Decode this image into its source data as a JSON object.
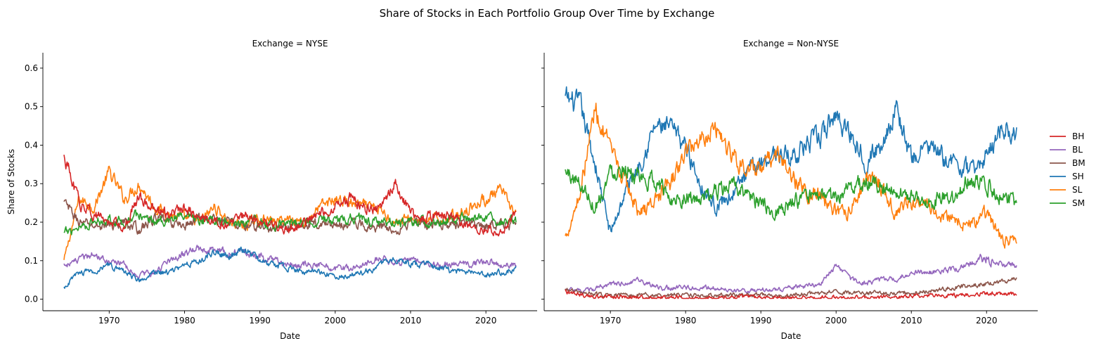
{
  "figure": {
    "suptitle": "Share of Stocks in Each Portfolio Group Over Time by Exchange"
  },
  "chart_data": {
    "type": "line",
    "title": "Share of Stocks in Each Portfolio Group Over Time by Exchange",
    "xlabel": "Date",
    "ylabel": "Share of Stocks",
    "xlim": [
      1961.2,
      2026.8
    ],
    "ylim": [
      -0.03,
      0.64
    ],
    "x_ticks": [
      1970,
      1980,
      1990,
      2000,
      2010,
      2020
    ],
    "y_ticks": [
      0.0,
      0.1,
      0.2,
      0.3,
      0.4,
      0.5,
      0.6
    ],
    "grid": false,
    "legend_position": "right-center",
    "legend": [
      {
        "name": "BH",
        "color": "#d62728"
      },
      {
        "name": "BL",
        "color": "#9467bd"
      },
      {
        "name": "BM",
        "color": "#8c564b"
      },
      {
        "name": "SH",
        "color": "#1f77b4"
      },
      {
        "name": "SL",
        "color": "#ff7f0e"
      },
      {
        "name": "SM",
        "color": "#2ca02c"
      }
    ],
    "facets": [
      {
        "title": "Exchange = NYSE",
        "series": [
          {
            "name": "SL",
            "color": "#ff7f0e",
            "x": [
              1964,
              1966,
              1968,
              1970,
              1972,
              1974,
              1976,
              1978,
              1980,
              1982,
              1984,
              1986,
              1988,
              1990,
              1992,
              1994,
              1996,
              1998,
              2000,
              2002,
              2004,
              2006,
              2008,
              2010,
              2012,
              2014,
              2016,
              2018,
              2020,
              2022,
              2024
            ],
            "y": [
              0.1,
              0.26,
              0.24,
              0.33,
              0.26,
              0.3,
              0.24,
              0.22,
              0.21,
              0.2,
              0.24,
              0.2,
              0.19,
              0.21,
              0.2,
              0.21,
              0.2,
              0.24,
              0.26,
              0.25,
              0.24,
              0.23,
              0.2,
              0.21,
              0.2,
              0.21,
              0.22,
              0.24,
              0.26,
              0.28,
              0.22
            ]
          },
          {
            "name": "BM",
            "color": "#8c564b",
            "x": [
              1964,
              1966,
              1968,
              1970,
              1972,
              1974,
              1976,
              1978,
              1980,
              1982,
              1984,
              1986,
              1988,
              1990,
              1992,
              1994,
              1996,
              1998,
              2000,
              2002,
              2004,
              2006,
              2008,
              2010,
              2012,
              2014,
              2016,
              2018,
              2020,
              2022,
              2024
            ],
            "y": [
              0.25,
              0.2,
              0.19,
              0.19,
              0.2,
              0.18,
              0.21,
              0.2,
              0.19,
              0.21,
              0.21,
              0.2,
              0.19,
              0.19,
              0.18,
              0.19,
              0.19,
              0.2,
              0.19,
              0.2,
              0.19,
              0.19,
              0.18,
              0.2,
              0.19,
              0.2,
              0.19,
              0.2,
              0.19,
              0.2,
              0.19
            ]
          },
          {
            "name": "SM",
            "color": "#2ca02c",
            "x": [
              1964,
              1966,
              1968,
              1970,
              1972,
              1974,
              1976,
              1978,
              1980,
              1982,
              1984,
              1986,
              1988,
              1990,
              1992,
              1994,
              1996,
              1998,
              2000,
              2002,
              2004,
              2006,
              2008,
              2010,
              2012,
              2014,
              2016,
              2018,
              2020,
              2022,
              2024
            ],
            "y": [
              0.17,
              0.19,
              0.2,
              0.21,
              0.2,
              0.22,
              0.2,
              0.21,
              0.21,
              0.2,
              0.21,
              0.2,
              0.2,
              0.2,
              0.19,
              0.2,
              0.2,
              0.21,
              0.2,
              0.21,
              0.21,
              0.2,
              0.2,
              0.2,
              0.2,
              0.2,
              0.21,
              0.21,
              0.21,
              0.2,
              0.2
            ]
          },
          {
            "name": "BH",
            "color": "#d62728",
            "x": [
              1964,
              1966,
              1968,
              1970,
              1972,
              1974,
              1976,
              1978,
              1980,
              1982,
              1984,
              1986,
              1988,
              1990,
              1992,
              1994,
              1996,
              1998,
              2000,
              2002,
              2004,
              2006,
              2008,
              2010,
              2012,
              2014,
              2016,
              2018,
              2020,
              2022,
              2024
            ],
            "y": [
              0.37,
              0.25,
              0.22,
              0.2,
              0.19,
              0.27,
              0.23,
              0.22,
              0.24,
              0.21,
              0.2,
              0.19,
              0.22,
              0.2,
              0.19,
              0.18,
              0.2,
              0.22,
              0.24,
              0.26,
              0.24,
              0.23,
              0.3,
              0.22,
              0.21,
              0.22,
              0.21,
              0.19,
              0.18,
              0.17,
              0.23
            ]
          },
          {
            "name": "BL",
            "color": "#9467bd",
            "x": [
              1964,
              1966,
              1968,
              1970,
              1972,
              1974,
              1976,
              1978,
              1980,
              1982,
              1984,
              1986,
              1988,
              1990,
              1992,
              1994,
              1996,
              1998,
              2000,
              2002,
              2004,
              2006,
              2008,
              2010,
              2012,
              2014,
              2016,
              2018,
              2020,
              2022,
              2024
            ],
            "y": [
              0.09,
              0.1,
              0.12,
              0.1,
              0.09,
              0.06,
              0.07,
              0.1,
              0.12,
              0.13,
              0.13,
              0.12,
              0.12,
              0.11,
              0.1,
              0.09,
              0.09,
              0.09,
              0.08,
              0.08,
              0.09,
              0.11,
              0.09,
              0.1,
              0.09,
              0.09,
              0.09,
              0.09,
              0.1,
              0.09,
              0.09
            ]
          },
          {
            "name": "SH",
            "color": "#1f77b4",
            "x": [
              1964,
              1966,
              1968,
              1970,
              1972,
              1974,
              1976,
              1978,
              1980,
              1982,
              1984,
              1986,
              1988,
              1990,
              1992,
              1994,
              1996,
              1998,
              2000,
              2002,
              2004,
              2006,
              2008,
              2010,
              2012,
              2014,
              2016,
              2018,
              2020,
              2022,
              2024
            ],
            "y": [
              0.03,
              0.07,
              0.07,
              0.09,
              0.07,
              0.05,
              0.07,
              0.07,
              0.09,
              0.1,
              0.12,
              0.11,
              0.13,
              0.1,
              0.09,
              0.08,
              0.07,
              0.07,
              0.06,
              0.06,
              0.07,
              0.09,
              0.1,
              0.09,
              0.09,
              0.08,
              0.07,
              0.07,
              0.06,
              0.07,
              0.08
            ]
          }
        ]
      },
      {
        "title": "Exchange = Non-NYSE",
        "series": [
          {
            "name": "SH",
            "color": "#1f77b4",
            "x": [
              1964,
              1966,
              1968,
              1970,
              1972,
              1974,
              1976,
              1978,
              1980,
              1982,
              1984,
              1986,
              1988,
              1990,
              1992,
              1994,
              1996,
              1998,
              2000,
              2002,
              2004,
              2006,
              2008,
              2010,
              2012,
              2014,
              2016,
              2018,
              2020,
              2022,
              2024
            ],
            "y": [
              0.52,
              0.5,
              0.35,
              0.17,
              0.28,
              0.36,
              0.45,
              0.44,
              0.4,
              0.3,
              0.24,
              0.27,
              0.32,
              0.36,
              0.38,
              0.37,
              0.4,
              0.42,
              0.48,
              0.43,
              0.36,
              0.4,
              0.5,
              0.36,
              0.4,
              0.37,
              0.35,
              0.33,
              0.37,
              0.45,
              0.43
            ]
          },
          {
            "name": "SL",
            "color": "#ff7f0e",
            "x": [
              1964,
              1966,
              1968,
              1970,
              1972,
              1974,
              1976,
              1978,
              1980,
              1982,
              1984,
              1986,
              1988,
              1990,
              1992,
              1994,
              1996,
              1998,
              2000,
              2002,
              2004,
              2006,
              2008,
              2010,
              2012,
              2014,
              2016,
              2018,
              2020,
              2022,
              2024
            ],
            "y": [
              0.16,
              0.28,
              0.5,
              0.38,
              0.3,
              0.22,
              0.26,
              0.3,
              0.38,
              0.42,
              0.45,
              0.38,
              0.34,
              0.33,
              0.38,
              0.32,
              0.28,
              0.27,
              0.22,
              0.23,
              0.32,
              0.3,
              0.22,
              0.25,
              0.24,
              0.22,
              0.21,
              0.19,
              0.23,
              0.15,
              0.16
            ]
          },
          {
            "name": "SM",
            "color": "#2ca02c",
            "x": [
              1964,
              1966,
              1968,
              1970,
              1972,
              1974,
              1976,
              1978,
              1980,
              1982,
              1984,
              1986,
              1988,
              1990,
              1992,
              1994,
              1996,
              1998,
              2000,
              2002,
              2004,
              2006,
              2008,
              2010,
              2012,
              2014,
              2016,
              2018,
              2020,
              2022,
              2024
            ],
            "y": [
              0.33,
              0.3,
              0.24,
              0.33,
              0.35,
              0.3,
              0.31,
              0.26,
              0.27,
              0.25,
              0.28,
              0.29,
              0.28,
              0.24,
              0.23,
              0.25,
              0.26,
              0.27,
              0.26,
              0.29,
              0.31,
              0.29,
              0.28,
              0.27,
              0.25,
              0.26,
              0.27,
              0.32,
              0.3,
              0.27,
              0.25
            ]
          },
          {
            "name": "BL",
            "color": "#9467bd",
            "x": [
              1964,
              1966,
              1968,
              1970,
              1972,
              1974,
              1976,
              1978,
              1980,
              1982,
              1984,
              1986,
              1988,
              1990,
              1992,
              1994,
              1996,
              1998,
              2000,
              2002,
              2004,
              2006,
              2008,
              2010,
              2012,
              2014,
              2016,
              2018,
              2020,
              2022,
              2024
            ],
            "y": [
              0.025,
              0.02,
              0.025,
              0.04,
              0.04,
              0.05,
              0.03,
              0.03,
              0.03,
              0.03,
              0.03,
              0.025,
              0.02,
              0.025,
              0.025,
              0.03,
              0.035,
              0.04,
              0.09,
              0.05,
              0.04,
              0.05,
              0.05,
              0.07,
              0.07,
              0.07,
              0.08,
              0.09,
              0.11,
              0.09,
              0.09
            ]
          },
          {
            "name": "BM",
            "color": "#8c564b",
            "x": [
              1964,
              1966,
              1968,
              1970,
              1972,
              1974,
              1976,
              1978,
              1980,
              1982,
              1984,
              1986,
              1988,
              1990,
              1992,
              1994,
              1996,
              1998,
              2000,
              2002,
              2004,
              2006,
              2008,
              2010,
              2012,
              2014,
              2016,
              2018,
              2020,
              2022,
              2024
            ],
            "y": [
              0.025,
              0.015,
              0.012,
              0.01,
              0.01,
              0.01,
              0.01,
              0.01,
              0.012,
              0.01,
              0.01,
              0.01,
              0.01,
              0.01,
              0.01,
              0.012,
              0.015,
              0.015,
              0.02,
              0.015,
              0.015,
              0.015,
              0.015,
              0.02,
              0.02,
              0.025,
              0.03,
              0.035,
              0.04,
              0.045,
              0.05
            ]
          },
          {
            "name": "BH",
            "color": "#d62728",
            "x": [
              1964,
              1966,
              1968,
              1970,
              1972,
              1974,
              1976,
              1978,
              1980,
              1982,
              1984,
              1986,
              1988,
              1990,
              1992,
              1994,
              1996,
              1998,
              2000,
              2002,
              2004,
              2006,
              2008,
              2010,
              2012,
              2014,
              2016,
              2018,
              2020,
              2022,
              2024
            ],
            "y": [
              0.02,
              0.012,
              0.008,
              0.006,
              0.006,
              0.005,
              0.005,
              0.005,
              0.005,
              0.004,
              0.004,
              0.004,
              0.004,
              0.004,
              0.004,
              0.004,
              0.004,
              0.004,
              0.004,
              0.004,
              0.005,
              0.006,
              0.006,
              0.008,
              0.008,
              0.01,
              0.01,
              0.012,
              0.015,
              0.015,
              0.015
            ]
          }
        ]
      }
    ]
  }
}
